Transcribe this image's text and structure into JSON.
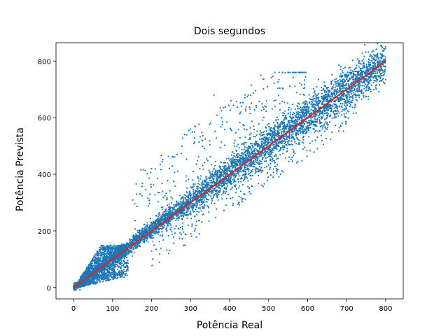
{
  "chart_data": {
    "type": "scatter",
    "title": "Dois segundos",
    "xlabel": "Potência Real",
    "ylabel": "Potência Prevista",
    "xlim": [
      -45,
      845
    ],
    "ylim": [
      -40,
      865
    ],
    "xticks": [
      0,
      100,
      200,
      300,
      400,
      500,
      600,
      700,
      800
    ],
    "yticks": [
      0,
      200,
      400,
      600,
      800
    ],
    "grid": false,
    "colors": {
      "points": "#1f77b4",
      "fit_line": "#d62728"
    },
    "series": [
      {
        "kind": "scatter",
        "approx_point_count": 30000,
        "description_of_spread": "dense band around y=x, wider in 300-700 range; bulge above line between 20 and 150",
        "points_sample": [
          [
            0,
            0
          ],
          [
            10,
            8
          ],
          [
            20,
            25
          ],
          [
            30,
            45
          ],
          [
            40,
            70
          ],
          [
            50,
            95
          ],
          [
            60,
            120
          ],
          [
            70,
            140
          ],
          [
            80,
            135
          ],
          [
            90,
            130
          ],
          [
            100,
            140
          ],
          [
            110,
            130
          ],
          [
            120,
            145
          ],
          [
            130,
            150
          ],
          [
            140,
            155
          ],
          [
            150,
            165
          ],
          [
            20,
            5
          ],
          [
            40,
            15
          ],
          [
            60,
            30
          ],
          [
            80,
            55
          ],
          [
            100,
            80
          ],
          [
            120,
            105
          ],
          [
            170,
            180
          ],
          [
            200,
            210
          ],
          [
            250,
            260
          ],
          [
            300,
            320
          ],
          [
            350,
            370
          ],
          [
            400,
            420
          ],
          [
            450,
            470
          ],
          [
            500,
            510
          ],
          [
            550,
            570
          ],
          [
            600,
            620
          ],
          [
            650,
            660
          ],
          [
            700,
            720
          ],
          [
            750,
            760
          ],
          [
            800,
            800
          ],
          [
            300,
            270
          ],
          [
            400,
            370
          ],
          [
            500,
            470
          ],
          [
            600,
            560
          ],
          [
            700,
            680
          ],
          [
            250,
            320
          ],
          [
            330,
            520
          ],
          [
            360,
            680
          ],
          [
            430,
            640
          ],
          [
            480,
            750
          ],
          [
            300,
            560
          ],
          [
            200,
            420
          ],
          [
            520,
            420
          ],
          [
            560,
            460
          ],
          [
            620,
            520
          ],
          [
            450,
            350
          ]
        ]
      },
      {
        "kind": "line",
        "name": "",
        "x": [
          0,
          800
        ],
        "y": [
          0,
          800
        ]
      }
    ]
  }
}
